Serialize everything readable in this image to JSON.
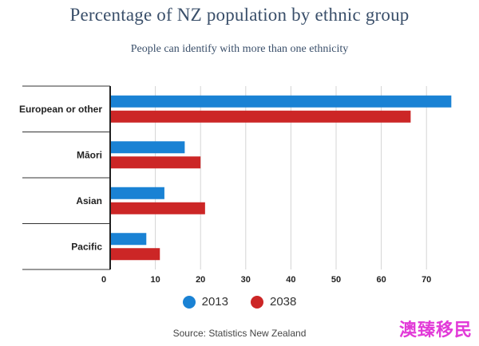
{
  "chart_data": {
    "type": "bar",
    "orientation": "horizontal",
    "title": "Percentage of NZ population by ethnic group",
    "subtitle": "People can identify with more than one ethnicity",
    "categories": [
      "European or other",
      "Māori",
      "Asian",
      "Pacific"
    ],
    "series": [
      {
        "name": "2013",
        "values": [
          75.5,
          16.5,
          12.0,
          8.0
        ],
        "color": "#1a82d4"
      },
      {
        "name": "2038",
        "values": [
          66.5,
          20.0,
          21.0,
          11.0
        ],
        "color": "#cc2626"
      }
    ],
    "xlim": [
      0,
      76
    ],
    "xticks": [
      0,
      10,
      20,
      30,
      40,
      50,
      60,
      70
    ],
    "grid": true,
    "legend_position": "bottom"
  },
  "source": "Source: Statistics New Zealand",
  "watermark": "澳臻移民"
}
